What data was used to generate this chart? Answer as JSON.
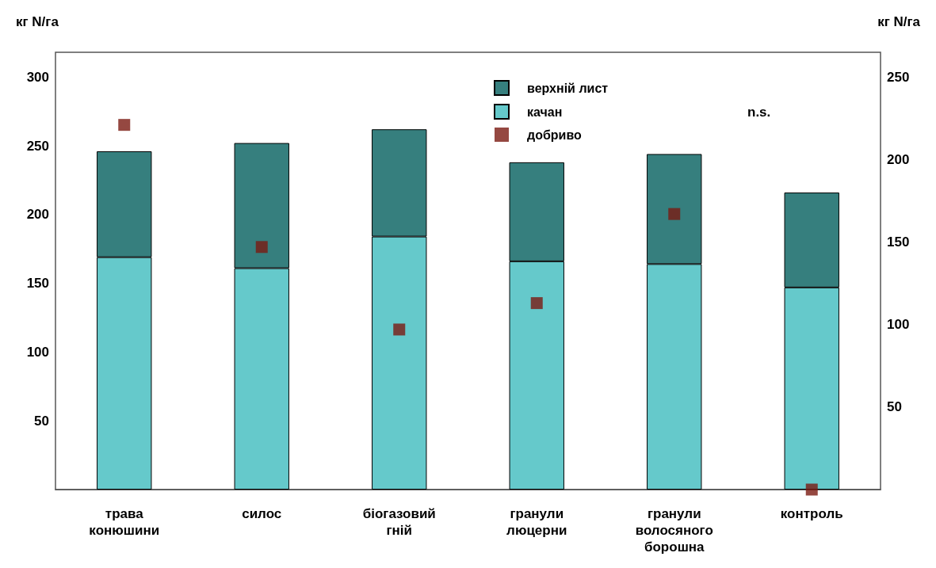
{
  "chart_data": {
    "type": "bar",
    "stacked": true,
    "categories": [
      "трава конюшини",
      "силос",
      "біогазовий гній",
      "гранули люцерни",
      "гранули волосяного борошна",
      "контроль"
    ],
    "series": [
      {
        "name": "качан",
        "color": "#65c9cb",
        "values": [
          169,
          161,
          184,
          166,
          164,
          147
        ]
      },
      {
        "name": "верхній лист",
        "color": "#367f7e",
        "values": [
          77,
          91,
          78,
          72,
          80,
          69
        ]
      },
      {
        "name": "добриво",
        "type": "scatter",
        "axis": "y2",
        "marker": "square",
        "color": "#7b1a12",
        "values": [
          221,
          147,
          97,
          113,
          167,
          0
        ]
      }
    ],
    "ylabel": "кг N/га",
    "y2label": "кг N/га",
    "ylim": [
      0,
      318
    ],
    "yticks": [
      50,
      100,
      150,
      200,
      250,
      300
    ],
    "y2lim": [
      0,
      265
    ],
    "y2ticks": [
      50,
      100,
      150,
      200,
      250
    ],
    "annotations": [
      "n.s."
    ],
    "legend": "top",
    "grid": false
  }
}
